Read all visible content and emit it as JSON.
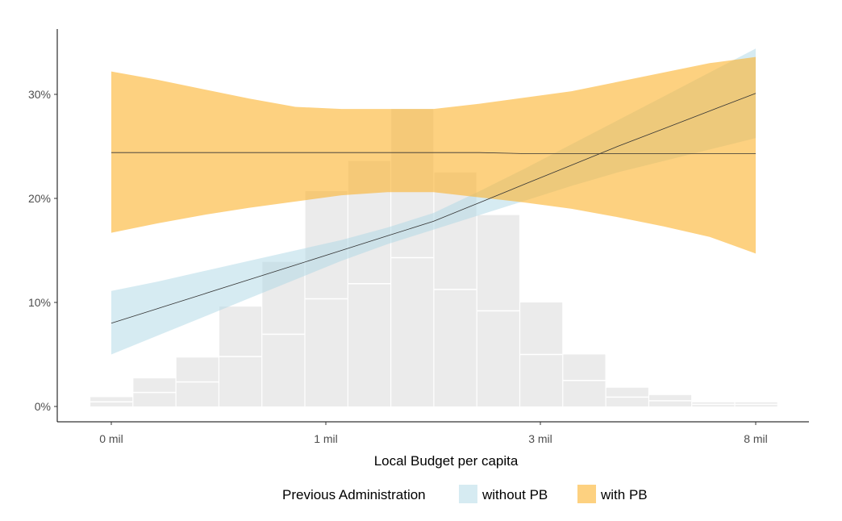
{
  "chart_data": {
    "type": "line",
    "xlabel": "Local Budget per capita",
    "ylabel": "",
    "x_ticks": [
      "0 mil",
      "1 mil",
      "3 mil",
      "8 mil"
    ],
    "y_ticks": [
      "0%",
      "10%",
      "20%",
      "30%"
    ],
    "ylim": [
      0,
      35
    ],
    "grid": false,
    "legend": {
      "title": "Previous Administration",
      "placement": "bottom",
      "entries": [
        {
          "label": "without PB",
          "color": "#add8e6"
        },
        {
          "label": "with PB",
          "color": "#fbb32c"
        }
      ]
    },
    "histogram": {
      "color": "#ebebeb",
      "heights": [
        0.9,
        2.7,
        4.7,
        9.6,
        13.9,
        20.7,
        23.6,
        28.6,
        22.5,
        18.4,
        10.0,
        5.0,
        1.8,
        1.1,
        0.4,
        0.4
      ],
      "splits": [
        0.45,
        1.35,
        2.35,
        4.8,
        6.95,
        10.35,
        11.8,
        14.3,
        11.25,
        9.2,
        5.0,
        2.5,
        0.9,
        0.55,
        0.2,
        0.2
      ]
    },
    "series": [
      {
        "name": "without PB",
        "color": "#add8e6",
        "fit": [
          8.0,
          9.4,
          10.8,
          12.2,
          13.6,
          15.0,
          16.4,
          17.8,
          19.6,
          21.4,
          23.2,
          25.0,
          26.7,
          28.4,
          30.1
        ],
        "lower": [
          5.0,
          6.8,
          8.6,
          10.4,
          12.2,
          14.0,
          15.6,
          17.0,
          18.4,
          19.8,
          21.2,
          22.5,
          23.6,
          24.7,
          25.8
        ],
        "upper": [
          11.1,
          12.0,
          13.0,
          14.0,
          15.0,
          16.0,
          17.2,
          18.6,
          20.7,
          22.9,
          25.2,
          27.5,
          29.8,
          32.1,
          34.4
        ]
      },
      {
        "name": "with PB",
        "color": "#fbb32c",
        "fit": [
          24.4,
          24.4,
          24.4,
          24.4,
          24.4,
          24.4,
          24.4,
          24.4,
          24.4,
          24.3,
          24.3,
          24.3,
          24.3,
          24.3,
          24.3
        ],
        "lower": [
          16.7,
          17.6,
          18.4,
          19.1,
          19.7,
          20.3,
          20.6,
          20.6,
          20.1,
          19.6,
          19.0,
          18.2,
          17.3,
          16.3,
          14.7
        ],
        "upper": [
          32.2,
          31.4,
          30.5,
          29.6,
          28.8,
          28.6,
          28.6,
          28.6,
          29.1,
          29.7,
          30.3,
          31.2,
          32.1,
          33.0,
          33.6
        ]
      }
    ]
  }
}
